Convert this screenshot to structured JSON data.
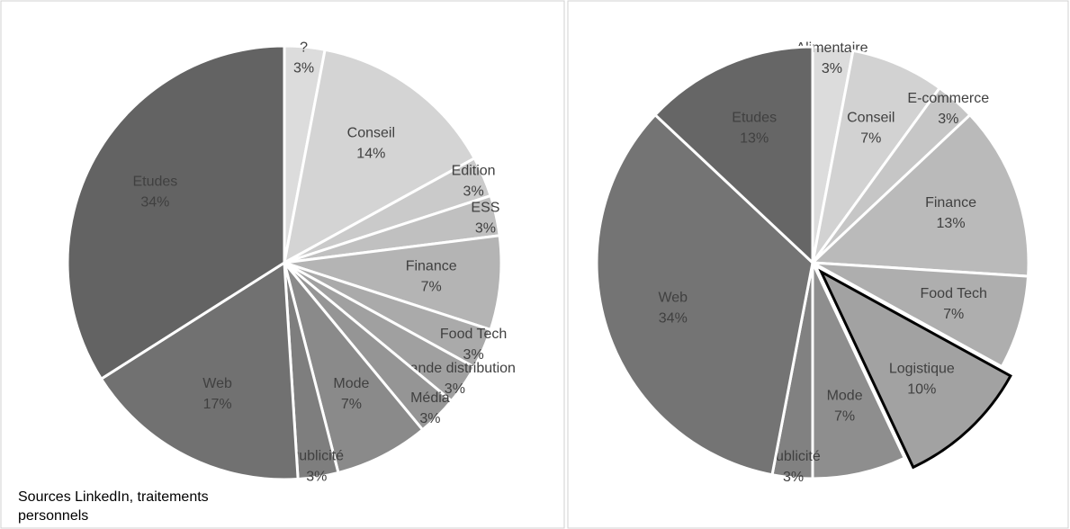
{
  "chart_data": [
    {
      "type": "pie",
      "categories": [
        "?",
        "Conseil",
        "Edition",
        "ESS",
        "Finance",
        "Food Tech",
        "Grande distribution",
        "Média",
        "Mode",
        "Publicité",
        "Web",
        "Etudes"
      ],
      "values": [
        3,
        14,
        3,
        3,
        7,
        3,
        3,
        3,
        7,
        3,
        17,
        34
      ],
      "value_labels": [
        "3%",
        "14%",
        "3%",
        "3%",
        "7%",
        "3%",
        "3%",
        "3%",
        "7%",
        "3%",
        "17%",
        "34%"
      ],
      "colors": [
        "#dcdcdc",
        "#d4d4d4",
        "#cacaca",
        "#c0c0c0",
        "#b4b4b4",
        "#aaaaaa",
        "#a0a0a0",
        "#959595",
        "#8a8a8a",
        "#7e7e7e",
        "#717171",
        "#636363"
      ],
      "annotation": "Sources LinkedIn, traitements personnels"
    },
    {
      "type": "pie",
      "categories": [
        "Alimentaire",
        "Conseil",
        "E-commerce",
        "Finance",
        "Food Tech",
        "Logistique",
        "Mode",
        "Publicité",
        "Web",
        "Etudes"
      ],
      "values": [
        3,
        7,
        3,
        13,
        7,
        10,
        7,
        3,
        34,
        13
      ],
      "value_labels": [
        "3%",
        "7%",
        "3%",
        "13%",
        "7%",
        "10%",
        "7%",
        "3%",
        "34%",
        "13%"
      ],
      "colors": [
        "#dcdcdc",
        "#d2d2d2",
        "#c6c6c6",
        "#bababa",
        "#aeaeae",
        "#a2a2a2",
        "#8e8e8e",
        "#818181",
        "#747474",
        "#666666"
      ],
      "highlight": "Logistique"
    }
  ]
}
